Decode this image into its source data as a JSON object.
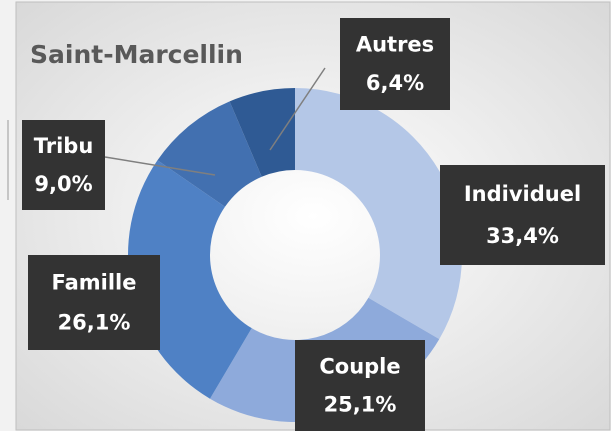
{
  "chart_data": {
    "type": "donut",
    "title": "Saint-Marcellin",
    "categories": [
      "Individuel",
      "Couple",
      "Famille",
      "Tribu",
      "Autres"
    ],
    "values": [
      33.4,
      25.1,
      26.1,
      9.0,
      6.4
    ],
    "value_labels": [
      "33,4%",
      "25,1%",
      "26,1%",
      "9,0%",
      "6,4%"
    ],
    "colors": [
      "#b4c7e7",
      "#8eaadb",
      "#4f81c5",
      "#4270b0",
      "#2f5a94"
    ]
  }
}
